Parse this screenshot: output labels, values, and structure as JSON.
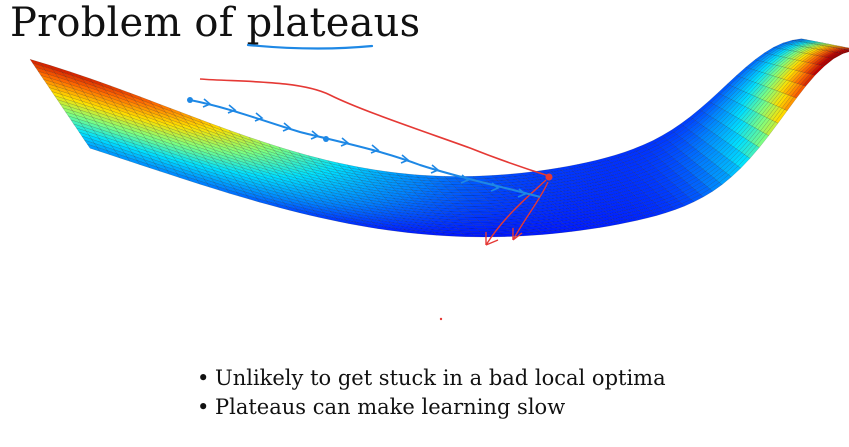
{
  "slide": {
    "title": "Problem of plateaus",
    "bullets": [
      "Unlikely to get stuck in a bad local optima",
      "Plateaus can make learning slow"
    ]
  },
  "colors": {
    "surface_colormap": [
      "#00007f",
      "#0000ff",
      "#0080ff",
      "#00e0ff",
      "#7fff7f",
      "#ffe000",
      "#ff6a00",
      "#c00000",
      "#7f0000"
    ],
    "annotation_blue": "#1e88e5",
    "annotation_red": "#e53935"
  },
  "icons": {
    "bullet": "bullet-dot-icon"
  }
}
